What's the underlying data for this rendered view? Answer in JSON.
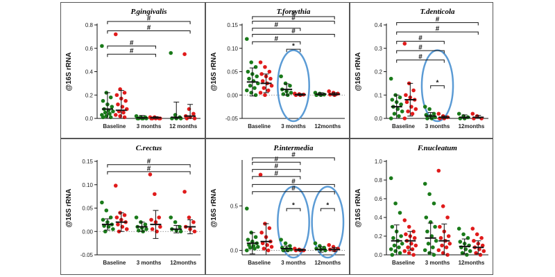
{
  "colors": {
    "group1": "#1a7a1a",
    "group2": "#e01b1b",
    "highlight": "#5b9bd5",
    "axis": "#111111",
    "errorbar": "#111111"
  },
  "chart_data": [
    {
      "type": "scatter",
      "title": "P.gingivalis",
      "ylabel": "@16S rRNA",
      "categories": [
        "Baseline",
        "3 months",
        "12 months"
      ],
      "ylim": [
        0,
        0.8
      ],
      "yticks": [
        "0.0",
        "0.2",
        "0.4",
        "0.6",
        "0.8"
      ],
      "ytick_values": [
        0,
        0.2,
        0.4,
        0.6,
        0.8
      ],
      "series": [
        {
          "name": "group1",
          "values": [
            [
              0.62,
              0.22,
              0.18,
              0.15,
              0.12,
              0.1,
              0.08,
              0.07,
              0.06,
              0.05,
              0.04,
              0.03,
              0.02,
              0.01,
              0.01
            ],
            [
              0.02,
              0.01,
              0.01,
              0.0,
              0.0,
              0.0,
              0.0,
              0.0
            ],
            [
              0.56,
              0.03,
              0.01,
              0.0,
              0.0,
              0.0
            ]
          ],
          "mean": [
            0.08,
            0.005,
            0.01
          ],
          "sd": [
            0.14,
            0.02,
            0.13
          ]
        },
        {
          "name": "group2",
          "values": [
            [
              0.72,
              0.25,
              0.22,
              0.2,
              0.17,
              0.15,
              0.12,
              0.1,
              0.08,
              0.06,
              0.05,
              0.03,
              0.02,
              0.01
            ],
            [
              0.01,
              0.01,
              0.0,
              0.0,
              0.0,
              0.0,
              0.0
            ],
            [
              0.55,
              0.08,
              0.04,
              0.02,
              0.01,
              0.0,
              0.0
            ]
          ],
          "mean": [
            0.07,
            0.005,
            0.02
          ],
          "sd": [
            0.17,
            0.01,
            0.1
          ]
        }
      ],
      "annotations": [
        {
          "text": "#",
          "from": 0,
          "to": 2,
          "level": 0.83
        },
        {
          "text": "#",
          "from": 0,
          "to": 2,
          "level": 0.75
        },
        {
          "text": "#",
          "from": 0,
          "to": 1,
          "level": 0.62
        },
        {
          "text": "#",
          "from": 0,
          "to": 1,
          "level": 0.55
        }
      ],
      "circles": []
    },
    {
      "type": "scatter",
      "title": "T.forsythia",
      "ylabel": "@16S rRNA",
      "categories": [
        "Baseline",
        "3 months",
        "12months"
      ],
      "ylim": [
        -0.05,
        0.15
      ],
      "yticks": [
        "-0.05",
        "0.00",
        "0.05",
        "0.10",
        "0.15"
      ],
      "ytick_values": [
        -0.05,
        0,
        0.05,
        0.1,
        0.15
      ],
      "series": [
        {
          "name": "group1",
          "values": [
            [
              0.12,
              0.07,
              0.06,
              0.05,
              0.045,
              0.04,
              0.035,
              0.03,
              0.025,
              0.02,
              0.015,
              0.01,
              0.005,
              0.0
            ],
            [
              0.04,
              0.025,
              0.02,
              0.012,
              0.008,
              0.005,
              0.002,
              0.0
            ],
            [
              0.005,
              0.003,
              0.001,
              0.0,
              0.0
            ]
          ],
          "mean": [
            0.028,
            0.012,
            0.002
          ],
          "sd": [
            0.03,
            0.012,
            0.003
          ]
        },
        {
          "name": "group2",
          "values": [
            [
              0.07,
              0.06,
              0.05,
              0.045,
              0.04,
              0.035,
              0.03,
              0.025,
              0.02,
              0.015,
              0.01,
              0.005,
              0.0
            ],
            [
              0.003,
              0.002,
              0.001,
              0.0,
              0.0
            ],
            [
              0.008,
              0.005,
              0.003,
              0.001,
              0.0
            ]
          ],
          "mean": [
            0.025,
            0.001,
            0.002
          ],
          "sd": [
            0.02,
            0.002,
            0.003
          ]
        }
      ],
      "annotations": [
        {
          "text": "#",
          "from": 0,
          "to": 2,
          "level": 0.175
        },
        {
          "text": "#",
          "from": 0,
          "to": 2,
          "level": 0.158
        },
        {
          "text": "#",
          "from": 0,
          "to": 1,
          "level": 0.143
        },
        {
          "text": "#",
          "from": 0,
          "to": 2,
          "level": 0.13
        },
        {
          "text": "#",
          "from": 0,
          "to": 1,
          "level": 0.114
        },
        {
          "text": "*",
          "from": 1,
          "to": 1,
          "level": 0.098
        }
      ],
      "circles": [
        1
      ]
    },
    {
      "type": "scatter",
      "title": "T.denticola",
      "ylabel": "@16S rRNA",
      "categories": [
        "Baseline",
        "3 months",
        "12months"
      ],
      "ylim": [
        0,
        0.4
      ],
      "yticks": [
        "0.0",
        "0.1",
        "0.2",
        "0.3",
        "0.4"
      ],
      "ytick_values": [
        0,
        0.1,
        0.2,
        0.3,
        0.4
      ],
      "series": [
        {
          "name": "group1",
          "values": [
            [
              0.17,
              0.1,
              0.09,
              0.08,
              0.07,
              0.06,
              0.05,
              0.04,
              0.03,
              0.02,
              0.01,
              0.0
            ],
            [
              0.05,
              0.04,
              0.02,
              0.015,
              0.01,
              0.005,
              0.0,
              0.0
            ],
            [
              0.02,
              0.01,
              0.005,
              0.0,
              0.0
            ]
          ],
          "mean": [
            0.05,
            0.01,
            0.005
          ],
          "sd": [
            0.05,
            0.015,
            0.01
          ]
        },
        {
          "name": "group2",
          "values": [
            [
              0.32,
              0.15,
              0.12,
              0.1,
              0.09,
              0.08,
              0.07,
              0.05,
              0.04,
              0.03,
              0.02,
              0.0
            ],
            [
              0.02,
              0.01,
              0.005,
              0.0,
              0.0
            ],
            [
              0.02,
              0.01,
              0.0,
              0.0
            ]
          ],
          "mean": [
            0.08,
            0.005,
            0.005
          ],
          "sd": [
            0.07,
            0.005,
            0.008
          ]
        }
      ],
      "annotations": [
        {
          "text": "#",
          "from": 0,
          "to": 2,
          "level": 0.41
        },
        {
          "text": "#",
          "from": 0,
          "to": 2,
          "level": 0.37
        },
        {
          "text": "#",
          "from": 0,
          "to": 1,
          "level": 0.33
        },
        {
          "text": "#",
          "from": 0,
          "to": 1,
          "level": 0.29
        },
        {
          "text": "#",
          "from": 0,
          "to": 1,
          "level": 0.25
        },
        {
          "text": "*",
          "from": 1,
          "to": 1,
          "level": 0.14
        }
      ],
      "circles": [
        1
      ]
    },
    {
      "type": "scatter",
      "title": "C.rectus",
      "ylabel": "@16S rRNA",
      "categories": [
        "Baseline",
        "3 months",
        "12months"
      ],
      "ylim": [
        -0.05,
        0.15
      ],
      "yticks": [
        "-0.05",
        "0.00",
        "0.05",
        "0.10",
        "0.15"
      ],
      "ytick_values": [
        -0.05,
        0,
        0.05,
        0.1,
        0.15
      ],
      "series": [
        {
          "name": "group1",
          "values": [
            [
              0.062,
              0.045,
              0.03,
              0.025,
              0.02,
              0.015,
              0.012,
              0.01,
              0.005,
              0.0
            ],
            [
              0.03,
              0.02,
              0.015,
              0.01,
              0.008,
              0.005,
              0.002,
              0.0
            ],
            [
              0.03,
              0.02,
              0.01,
              0.005,
              0.002,
              0.0
            ]
          ],
          "mean": [
            0.015,
            0.01,
            0.005
          ],
          "sd": [
            0.012,
            0.01,
            0.008
          ]
        },
        {
          "name": "group2",
          "values": [
            [
              0.098,
              0.04,
              0.035,
              0.03,
              0.025,
              0.02,
              0.015,
              0.01,
              0.005,
              0.0
            ],
            [
              0.122,
              0.08,
              0.03,
              0.025,
              0.02,
              0.01,
              0.005,
              0.0
            ],
            [
              0.085,
              0.03,
              0.02,
              0.01,
              0.005,
              0.0
            ]
          ],
          "mean": [
            0.02,
            0.015,
            0.01
          ],
          "sd": [
            0.02,
            0.03,
            0.015
          ]
        }
      ],
      "annotations": [
        {
          "text": "#",
          "from": 0,
          "to": 2,
          "level": 0.143
        },
        {
          "text": "#",
          "from": 0,
          "to": 2,
          "level": 0.128
        }
      ],
      "circles": []
    },
    {
      "type": "scatter",
      "title": "P.intermedia",
      "ylabel": "@16S rRNA",
      "categories": [
        "Baseline",
        "3 months",
        "12months"
      ],
      "ylim": [
        -0.05,
        1.0
      ],
      "yticks": [
        "0.0",
        "0.5"
      ],
      "ytick_values": [
        0,
        0.5
      ],
      "series": [
        {
          "name": "group1",
          "values": [
            [
              0.47,
              0.2,
              0.15,
              0.12,
              0.1,
              0.08,
              0.06,
              0.05,
              0.04,
              0.03,
              0.02,
              0.0
            ],
            [
              0.12,
              0.08,
              0.05,
              0.03,
              0.02,
              0.01,
              0.0,
              0.0
            ],
            [
              0.08,
              0.05,
              0.03,
              0.02,
              0.01,
              0.0
            ]
          ],
          "mean": [
            0.08,
            0.02,
            0.01
          ],
          "sd": [
            0.12,
            0.03,
            0.03
          ]
        },
        {
          "name": "group2",
          "values": [
            [
              0.85,
              0.3,
              0.25,
              0.2,
              0.15,
              0.1,
              0.08,
              0.06,
              0.04,
              0.02,
              0.0
            ],
            [
              0.02,
              0.01,
              0.0,
              0.0,
              0.0
            ],
            [
              0.06,
              0.04,
              0.02,
              0.01,
              0.0
            ]
          ],
          "mean": [
            0.1,
            0.005,
            0.01
          ],
          "sd": [
            0.2,
            0.01,
            0.02
          ]
        }
      ],
      "annotations": [
        {
          "text": "#",
          "from": 0,
          "to": 2,
          "level": 1.04
        },
        {
          "text": "#",
          "from": 0,
          "to": 1,
          "level": 0.99
        },
        {
          "text": "#",
          "from": 0,
          "to": 1,
          "level": 0.91
        },
        {
          "text": "#",
          "from": 0,
          "to": 1,
          "level": 0.83
        },
        {
          "text": "#",
          "from": 0,
          "to": 2,
          "level": 0.74
        },
        {
          "text": "#",
          "from": 0,
          "to": 2,
          "level": 0.66
        },
        {
          "text": "*",
          "from": 1,
          "to": 1,
          "level": 0.47
        },
        {
          "text": "*",
          "from": 2,
          "to": 2,
          "level": 0.47
        }
      ],
      "circles": [
        1,
        2
      ]
    },
    {
      "type": "scatter",
      "title": "F.nucleatum",
      "ylabel": "@16S rRNA",
      "categories": [
        "Baseline",
        "3 months",
        "12months"
      ],
      "ylim": [
        0,
        1.0
      ],
      "yticks": [
        "0.0",
        "0.2",
        "0.4",
        "0.6",
        "0.8",
        "1.0"
      ],
      "ytick_values": [
        0,
        0.2,
        0.4,
        0.6,
        0.8,
        1.0
      ],
      "series": [
        {
          "name": "group1",
          "values": [
            [
              0.82,
              0.55,
              0.45,
              0.3,
              0.25,
              0.2,
              0.18,
              0.15,
              0.12,
              0.1,
              0.08,
              0.06,
              0.04,
              0.02,
              0.0
            ],
            [
              0.76,
              0.65,
              0.55,
              0.4,
              0.35,
              0.3,
              0.25,
              0.2,
              0.15,
              0.12,
              0.08,
              0.05,
              0.02,
              0.0
            ],
            [
              0.28,
              0.22,
              0.18,
              0.14,
              0.12,
              0.1,
              0.08,
              0.06,
              0.04,
              0.02,
              0.0
            ]
          ],
          "mean": [
            0.15,
            0.18,
            0.09
          ],
          "sd": [
            0.17,
            0.16,
            0.08
          ]
        },
        {
          "name": "group2",
          "values": [
            [
              0.37,
              0.3,
              0.25,
              0.22,
              0.2,
              0.18,
              0.15,
              0.12,
              0.1,
              0.08,
              0.06,
              0.04,
              0.02,
              0.0
            ],
            [
              0.9,
              0.52,
              0.4,
              0.3,
              0.25,
              0.2,
              0.18,
              0.15,
              0.12,
              0.1,
              0.08,
              0.05,
              0.02,
              0.0
            ],
            [
              0.28,
              0.22,
              0.18,
              0.15,
              0.12,
              0.1,
              0.08,
              0.06,
              0.04,
              0.02,
              0.0
            ]
          ],
          "mean": [
            0.15,
            0.15,
            0.08
          ],
          "sd": [
            0.1,
            0.18,
            0.07
          ]
        }
      ],
      "annotations": [],
      "circles": []
    }
  ]
}
